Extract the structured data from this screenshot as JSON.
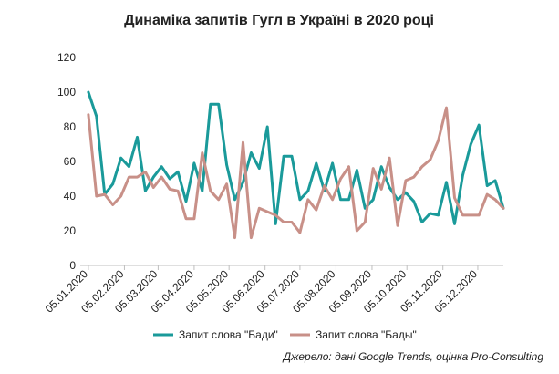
{
  "chart_data": {
    "type": "line",
    "title": "Динаміка запитів Гугл в Україні в 2020 році",
    "xlabel": "",
    "ylabel": "",
    "ylim": [
      0,
      120
    ],
    "yticks": [
      0,
      20,
      40,
      60,
      80,
      100,
      120
    ],
    "xlim": [
      "2019-12-29",
      "2020-12-27"
    ],
    "xticks": [
      "2020-01-05",
      "2020-02-05",
      "2020-03-05",
      "2020-04-05",
      "2020-05-05",
      "2020-06-05",
      "2020-07-05",
      "2020-08-05",
      "2020-09-05",
      "2020-10-05",
      "2020-11-05",
      "2020-12-05"
    ],
    "xtick_labels": [
      "05.01.2020",
      "05.02.2020",
      "05.03.2020",
      "05.04.2020",
      "05.05.2020",
      "05.06.2020",
      "05.07.2020",
      "05.08.2020",
      "05.09.2020",
      "05.10.2020",
      "05.11.2020",
      "05.12.2020"
    ],
    "grid": false,
    "legend_position": "bottom",
    "source": "Джерело: дані Google Trends, оцінка Pro-Consulting",
    "x": [
      "2020-01-05",
      "2020-01-12",
      "2020-01-19",
      "2020-01-26",
      "2020-02-02",
      "2020-02-09",
      "2020-02-16",
      "2020-02-23",
      "2020-03-01",
      "2020-03-08",
      "2020-03-15",
      "2020-03-22",
      "2020-03-29",
      "2020-04-05",
      "2020-04-12",
      "2020-04-19",
      "2020-04-26",
      "2020-05-03",
      "2020-05-10",
      "2020-05-17",
      "2020-05-24",
      "2020-05-31",
      "2020-06-07",
      "2020-06-14",
      "2020-06-21",
      "2020-06-28",
      "2020-07-05",
      "2020-07-12",
      "2020-07-19",
      "2020-07-26",
      "2020-08-02",
      "2020-08-09",
      "2020-08-16",
      "2020-08-23",
      "2020-08-30",
      "2020-09-06",
      "2020-09-13",
      "2020-09-20",
      "2020-09-27",
      "2020-10-04",
      "2020-10-11",
      "2020-10-18",
      "2020-10-25",
      "2020-11-01",
      "2020-11-08",
      "2020-11-15",
      "2020-11-22",
      "2020-11-29",
      "2020-12-06",
      "2020-12-13",
      "2020-12-20",
      "2020-12-27"
    ],
    "series": [
      {
        "name": "Запит слова \"Бади\"",
        "color": "#1a9a9a",
        "values": [
          100,
          86,
          41,
          47,
          62,
          57,
          74,
          43,
          51,
          57,
          50,
          54,
          37,
          59,
          43,
          93,
          93,
          58,
          38,
          48,
          65,
          56,
          80,
          24,
          63,
          63,
          38,
          43,
          59,
          43,
          59,
          38,
          38,
          55,
          33,
          38,
          57,
          45,
          38,
          42,
          37,
          25,
          30,
          29,
          48,
          24,
          52,
          70,
          81,
          46,
          49,
          33
        ]
      },
      {
        "name": "Запит слова \"Бады\"",
        "color": "#c89088",
        "values": [
          87,
          40,
          41,
          35,
          40,
          51,
          51,
          54,
          45,
          51,
          44,
          43,
          27,
          27,
          65,
          43,
          38,
          47,
          16,
          71,
          16,
          33,
          31,
          29,
          25,
          25,
          19,
          38,
          32,
          46,
          38,
          50,
          57,
          20,
          25,
          56,
          44,
          62,
          23,
          49,
          51,
          57,
          61,
          72,
          91,
          39,
          29,
          29,
          29,
          41,
          38,
          33
        ]
      }
    ]
  }
}
